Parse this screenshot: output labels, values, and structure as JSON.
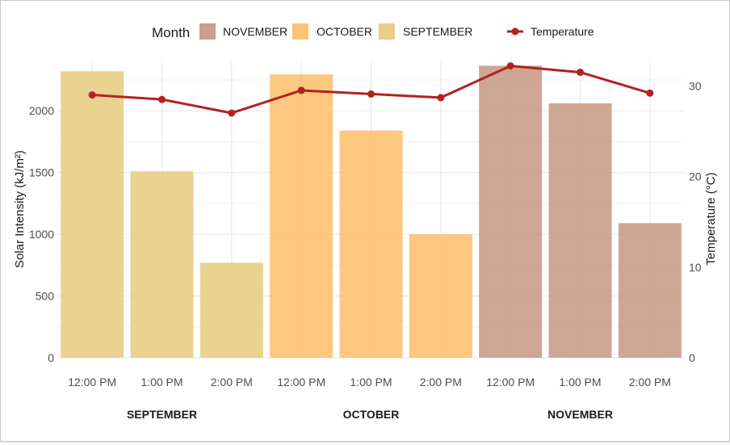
{
  "chart_data": {
    "type": "bar",
    "legend": {
      "month_title": "Month",
      "entries": [
        {
          "label": "NOVEMBER",
          "color": "#C9A08A"
        },
        {
          "label": "OCTOBER",
          "color": "#FDC275"
        },
        {
          "label": "SEPTEMBER",
          "color": "#E8CE88"
        }
      ],
      "line_label": "Temperature",
      "line_color": "#B22222",
      "position": "top"
    },
    "groups": [
      {
        "name": "SEPTEMBER",
        "color": "#E8CE88",
        "times": [
          "12:00 PM",
          "1:00 PM",
          "2:00 PM"
        ],
        "solar": [
          2320,
          1510,
          770
        ],
        "temperature": [
          29.0,
          28.5,
          27.0
        ]
      },
      {
        "name": "OCTOBER",
        "color": "#FDC275",
        "times": [
          "12:00 PM",
          "1:00 PM",
          "2:00 PM"
        ],
        "solar": [
          2295,
          1840,
          1000
        ],
        "temperature": [
          29.5,
          29.1,
          28.7
        ]
      },
      {
        "name": "NOVEMBER",
        "color": "#C9A08A",
        "times": [
          "12:00 PM",
          "1:00 PM",
          "2:00 PM"
        ],
        "solar": [
          2365,
          2060,
          1090
        ],
        "temperature": [
          32.2,
          31.5,
          29.2
        ]
      }
    ],
    "y_left": {
      "label": "Solar Intensity (kJ/m²)",
      "ticks": [
        0,
        500,
        1000,
        1500,
        2000
      ],
      "range": [
        0,
        2400
      ]
    },
    "y_right": {
      "label": "Temperature (°C)",
      "ticks": [
        0,
        10,
        20,
        30
      ],
      "range": [
        0,
        32.7
      ]
    },
    "grid": true
  }
}
